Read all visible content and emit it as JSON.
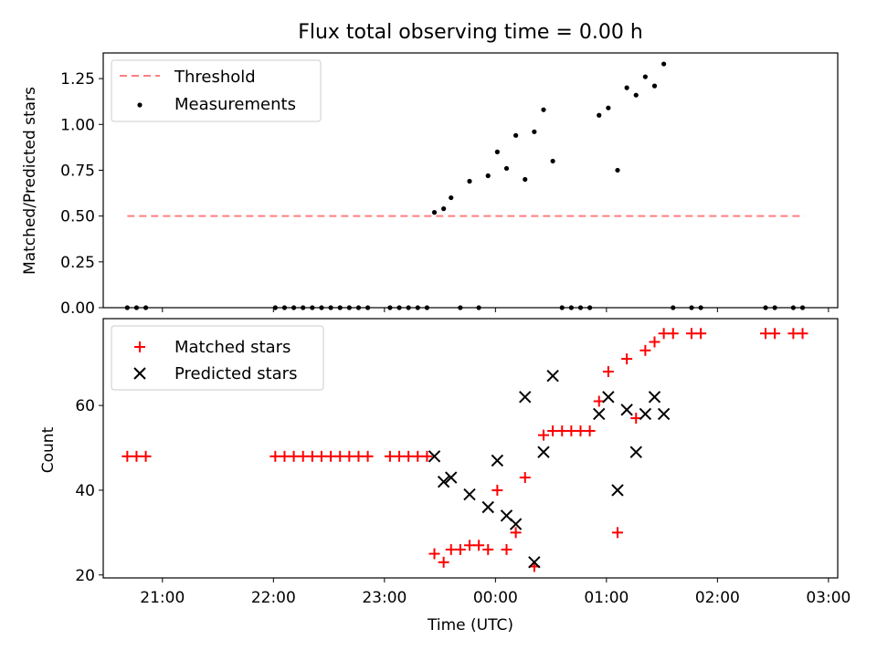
{
  "figure": {
    "title": "Flux total observing time = 0.00 h"
  },
  "chart_data": [
    {
      "type": "scatter",
      "ylabel": "Matched/Predicted stars",
      "xlim": [
        "20:28",
        "03:05"
      ],
      "ylim": [
        0,
        1.39
      ],
      "y_ticks": [
        0.0,
        0.25,
        0.5,
        0.75,
        1.0,
        1.25
      ],
      "y_tick_labels": [
        "0.00",
        "0.25",
        "0.50",
        "0.75",
        "1.00",
        "1.25"
      ],
      "legend": {
        "position": "top-left",
        "entries": [
          "Threshold",
          "Measurements"
        ]
      },
      "threshold": {
        "name": "Threshold",
        "value": 0.5,
        "x_start": "20:41",
        "x_end": "02:47",
        "color": "#ff7f7f"
      },
      "measurements": {
        "name": "Measurements",
        "color": "#000000",
        "points": [
          [
            "20:41",
            0.0
          ],
          [
            "20:46",
            0.0
          ],
          [
            "20:51",
            0.0
          ],
          [
            "22:01",
            0.0
          ],
          [
            "22:06",
            0.0
          ],
          [
            "22:11",
            0.0
          ],
          [
            "22:16",
            0.0
          ],
          [
            "22:21",
            0.0
          ],
          [
            "22:26",
            0.0
          ],
          [
            "22:31",
            0.0
          ],
          [
            "22:36",
            0.0
          ],
          [
            "22:41",
            0.0
          ],
          [
            "22:46",
            0.0
          ],
          [
            "22:51",
            0.0
          ],
          [
            "23:03",
            0.0
          ],
          [
            "23:08",
            0.0
          ],
          [
            "23:13",
            0.0
          ],
          [
            "23:18",
            0.0
          ],
          [
            "23:23",
            0.0
          ],
          [
            "23:27",
            0.52
          ],
          [
            "23:32",
            0.54
          ],
          [
            "23:36",
            0.6
          ],
          [
            "23:41",
            0.0
          ],
          [
            "23:46",
            0.69
          ],
          [
            "23:51",
            0.0
          ],
          [
            "23:56",
            0.72
          ],
          [
            "00:01",
            0.85
          ],
          [
            "00:06",
            0.76
          ],
          [
            "00:11",
            0.94
          ],
          [
            "00:16",
            0.7
          ],
          [
            "00:21",
            0.96
          ],
          [
            "00:26",
            1.08
          ],
          [
            "00:31",
            0.8
          ],
          [
            "00:36",
            0.0
          ],
          [
            "00:41",
            0.0
          ],
          [
            "00:46",
            0.0
          ],
          [
            "00:51",
            0.0
          ],
          [
            "00:56",
            1.05
          ],
          [
            "01:01",
            1.09
          ],
          [
            "01:06",
            0.75
          ],
          [
            "01:11",
            1.2
          ],
          [
            "01:16",
            1.16
          ],
          [
            "01:21",
            1.26
          ],
          [
            "01:26",
            1.21
          ],
          [
            "01:31",
            1.33
          ],
          [
            "01:36",
            0.0
          ],
          [
            "01:46",
            0.0
          ],
          [
            "01:51",
            0.0
          ],
          [
            "02:26",
            0.0
          ],
          [
            "02:31",
            0.0
          ],
          [
            "02:41",
            0.0
          ],
          [
            "02:46",
            0.0
          ]
        ]
      }
    },
    {
      "type": "scatter",
      "xlabel": "Time (UTC)",
      "ylabel": "Count",
      "xlim": [
        "20:28",
        "03:05"
      ],
      "ylim": [
        19.3,
        80.5
      ],
      "x_ticks": [
        "21:00",
        "22:00",
        "23:00",
        "00:00",
        "01:00",
        "02:00",
        "03:00"
      ],
      "y_ticks": [
        20,
        40,
        60
      ],
      "legend": {
        "position": "top-left",
        "entries": [
          "Matched stars",
          "Predicted stars"
        ]
      },
      "series": [
        {
          "name": "Matched stars",
          "marker": "+",
          "color": "#ff0000",
          "points": [
            [
              "20:41",
              48
            ],
            [
              "20:46",
              48
            ],
            [
              "20:51",
              48
            ],
            [
              "22:01",
              48
            ],
            [
              "22:06",
              48
            ],
            [
              "22:11",
              48
            ],
            [
              "22:16",
              48
            ],
            [
              "22:21",
              48
            ],
            [
              "22:26",
              48
            ],
            [
              "22:31",
              48
            ],
            [
              "22:36",
              48
            ],
            [
              "22:41",
              48
            ],
            [
              "22:46",
              48
            ],
            [
              "22:51",
              48
            ],
            [
              "23:03",
              48
            ],
            [
              "23:08",
              48
            ],
            [
              "23:13",
              48
            ],
            [
              "23:18",
              48
            ],
            [
              "23:23",
              48
            ],
            [
              "23:27",
              25
            ],
            [
              "23:32",
              23
            ],
            [
              "23:36",
              26
            ],
            [
              "23:41",
              26
            ],
            [
              "23:46",
              27
            ],
            [
              "23:51",
              27
            ],
            [
              "23:56",
              26
            ],
            [
              "00:01",
              40
            ],
            [
              "00:06",
              26
            ],
            [
              "00:11",
              30
            ],
            [
              "00:16",
              43
            ],
            [
              "00:21",
              22
            ],
            [
              "00:26",
              53
            ],
            [
              "00:31",
              54
            ],
            [
              "00:36",
              54
            ],
            [
              "00:41",
              54
            ],
            [
              "00:46",
              54
            ],
            [
              "00:51",
              54
            ],
            [
              "00:56",
              61
            ],
            [
              "01:01",
              68
            ],
            [
              "01:06",
              30
            ],
            [
              "01:11",
              71
            ],
            [
              "01:16",
              57
            ],
            [
              "01:21",
              73
            ],
            [
              "01:26",
              75
            ],
            [
              "01:31",
              77
            ],
            [
              "01:36",
              77
            ],
            [
              "01:46",
              77
            ],
            [
              "01:51",
              77
            ],
            [
              "02:26",
              77
            ],
            [
              "02:31",
              77
            ],
            [
              "02:41",
              77
            ],
            [
              "02:46",
              77
            ]
          ]
        },
        {
          "name": "Predicted stars",
          "marker": "x",
          "color": "#000000",
          "points": [
            [
              "23:27",
              48
            ],
            [
              "23:32",
              42
            ],
            [
              "23:36",
              43
            ],
            [
              "23:46",
              39
            ],
            [
              "23:56",
              36
            ],
            [
              "00:01",
              47
            ],
            [
              "00:06",
              34
            ],
            [
              "00:11",
              32
            ],
            [
              "00:16",
              62
            ],
            [
              "00:21",
              23
            ],
            [
              "00:26",
              49
            ],
            [
              "00:31",
              67
            ],
            [
              "00:56",
              58
            ],
            [
              "01:01",
              62
            ],
            [
              "01:06",
              40
            ],
            [
              "01:11",
              59
            ],
            [
              "01:16",
              49
            ],
            [
              "01:21",
              58
            ],
            [
              "01:26",
              62
            ],
            [
              "01:31",
              58
            ]
          ]
        }
      ]
    }
  ]
}
